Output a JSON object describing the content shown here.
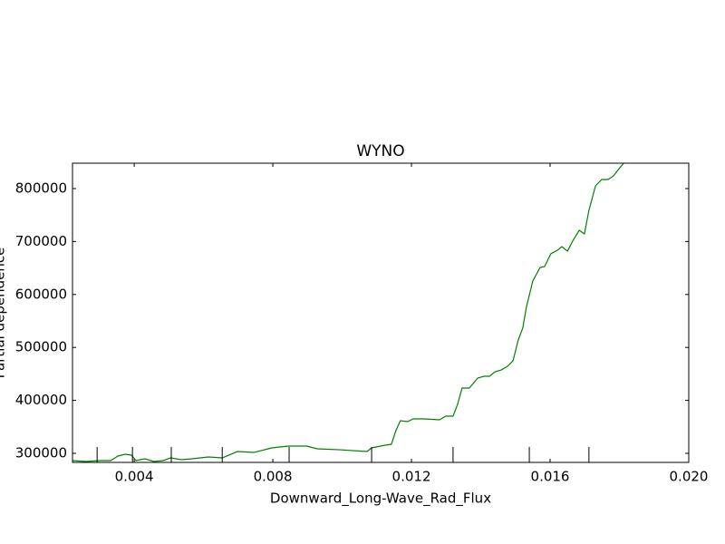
{
  "chart_data": {
    "type": "line",
    "title": "WYNO",
    "xlabel": "Downward_Long-Wave_Rad_Flux",
    "ylabel": "Partial dependence",
    "x": [
      0.00222,
      0.00261,
      0.00301,
      0.00332,
      0.00353,
      0.00374,
      0.00392,
      0.00405,
      0.00431,
      0.00457,
      0.00483,
      0.00505,
      0.00536,
      0.00567,
      0.00614,
      0.00654,
      0.00698,
      0.00745,
      0.00797,
      0.00844,
      0.00897,
      0.00928,
      0.00993,
      0.01072,
      0.01085,
      0.01124,
      0.01142,
      0.01155,
      0.01168,
      0.01189,
      0.01205,
      0.01236,
      0.01281,
      0.01299,
      0.0132,
      0.01333,
      0.01346,
      0.01367,
      0.01391,
      0.01409,
      0.01425,
      0.01441,
      0.01459,
      0.01477,
      0.01493,
      0.01508,
      0.01521,
      0.01532,
      0.0155,
      0.01571,
      0.01584,
      0.01602,
      0.01621,
      0.01634,
      0.0165,
      0.01665,
      0.01684,
      0.01699,
      0.01712,
      0.01731,
      0.01749,
      0.01767,
      0.01783,
      0.01799,
      0.01817
    ],
    "series": [
      {
        "name": "WYNO",
        "color": "#008000",
        "values": [
          286300,
          284600,
          286300,
          286300,
          294900,
          298300,
          296600,
          286300,
          289700,
          284600,
          286300,
          291400,
          288000,
          289700,
          293200,
          291400,
          303400,
          301700,
          310300,
          313700,
          313700,
          308600,
          306800,
          303400,
          310300,
          315400,
          317100,
          342800,
          361600,
          359900,
          365100,
          365100,
          363400,
          370200,
          370200,
          392500,
          423300,
          423300,
          442100,
          445500,
          445500,
          454100,
          457500,
          464400,
          474700,
          514000,
          536300,
          577400,
          625300,
          651000,
          652700,
          676700,
          683600,
          690400,
          681900,
          700700,
          721200,
          714400,
          758900,
          805100,
          817100,
          817100,
          824000,
          837700,
          851400
        ]
      }
    ],
    "deciles": [
      0.00293,
      0.00395,
      0.00507,
      0.00654,
      0.00847,
      0.01085,
      0.0132,
      0.0154,
      0.01712
    ],
    "xlim": [
      0.00222,
      0.02
    ],
    "ylim": [
      282900,
      847900
    ],
    "xticks": [
      0.004,
      0.008,
      0.012,
      0.016,
      {
        "value": 0.02,
        "label": "0.020"
      }
    ],
    "yticks": [
      300000,
      400000,
      500000,
      600000,
      700000,
      800000
    ]
  }
}
